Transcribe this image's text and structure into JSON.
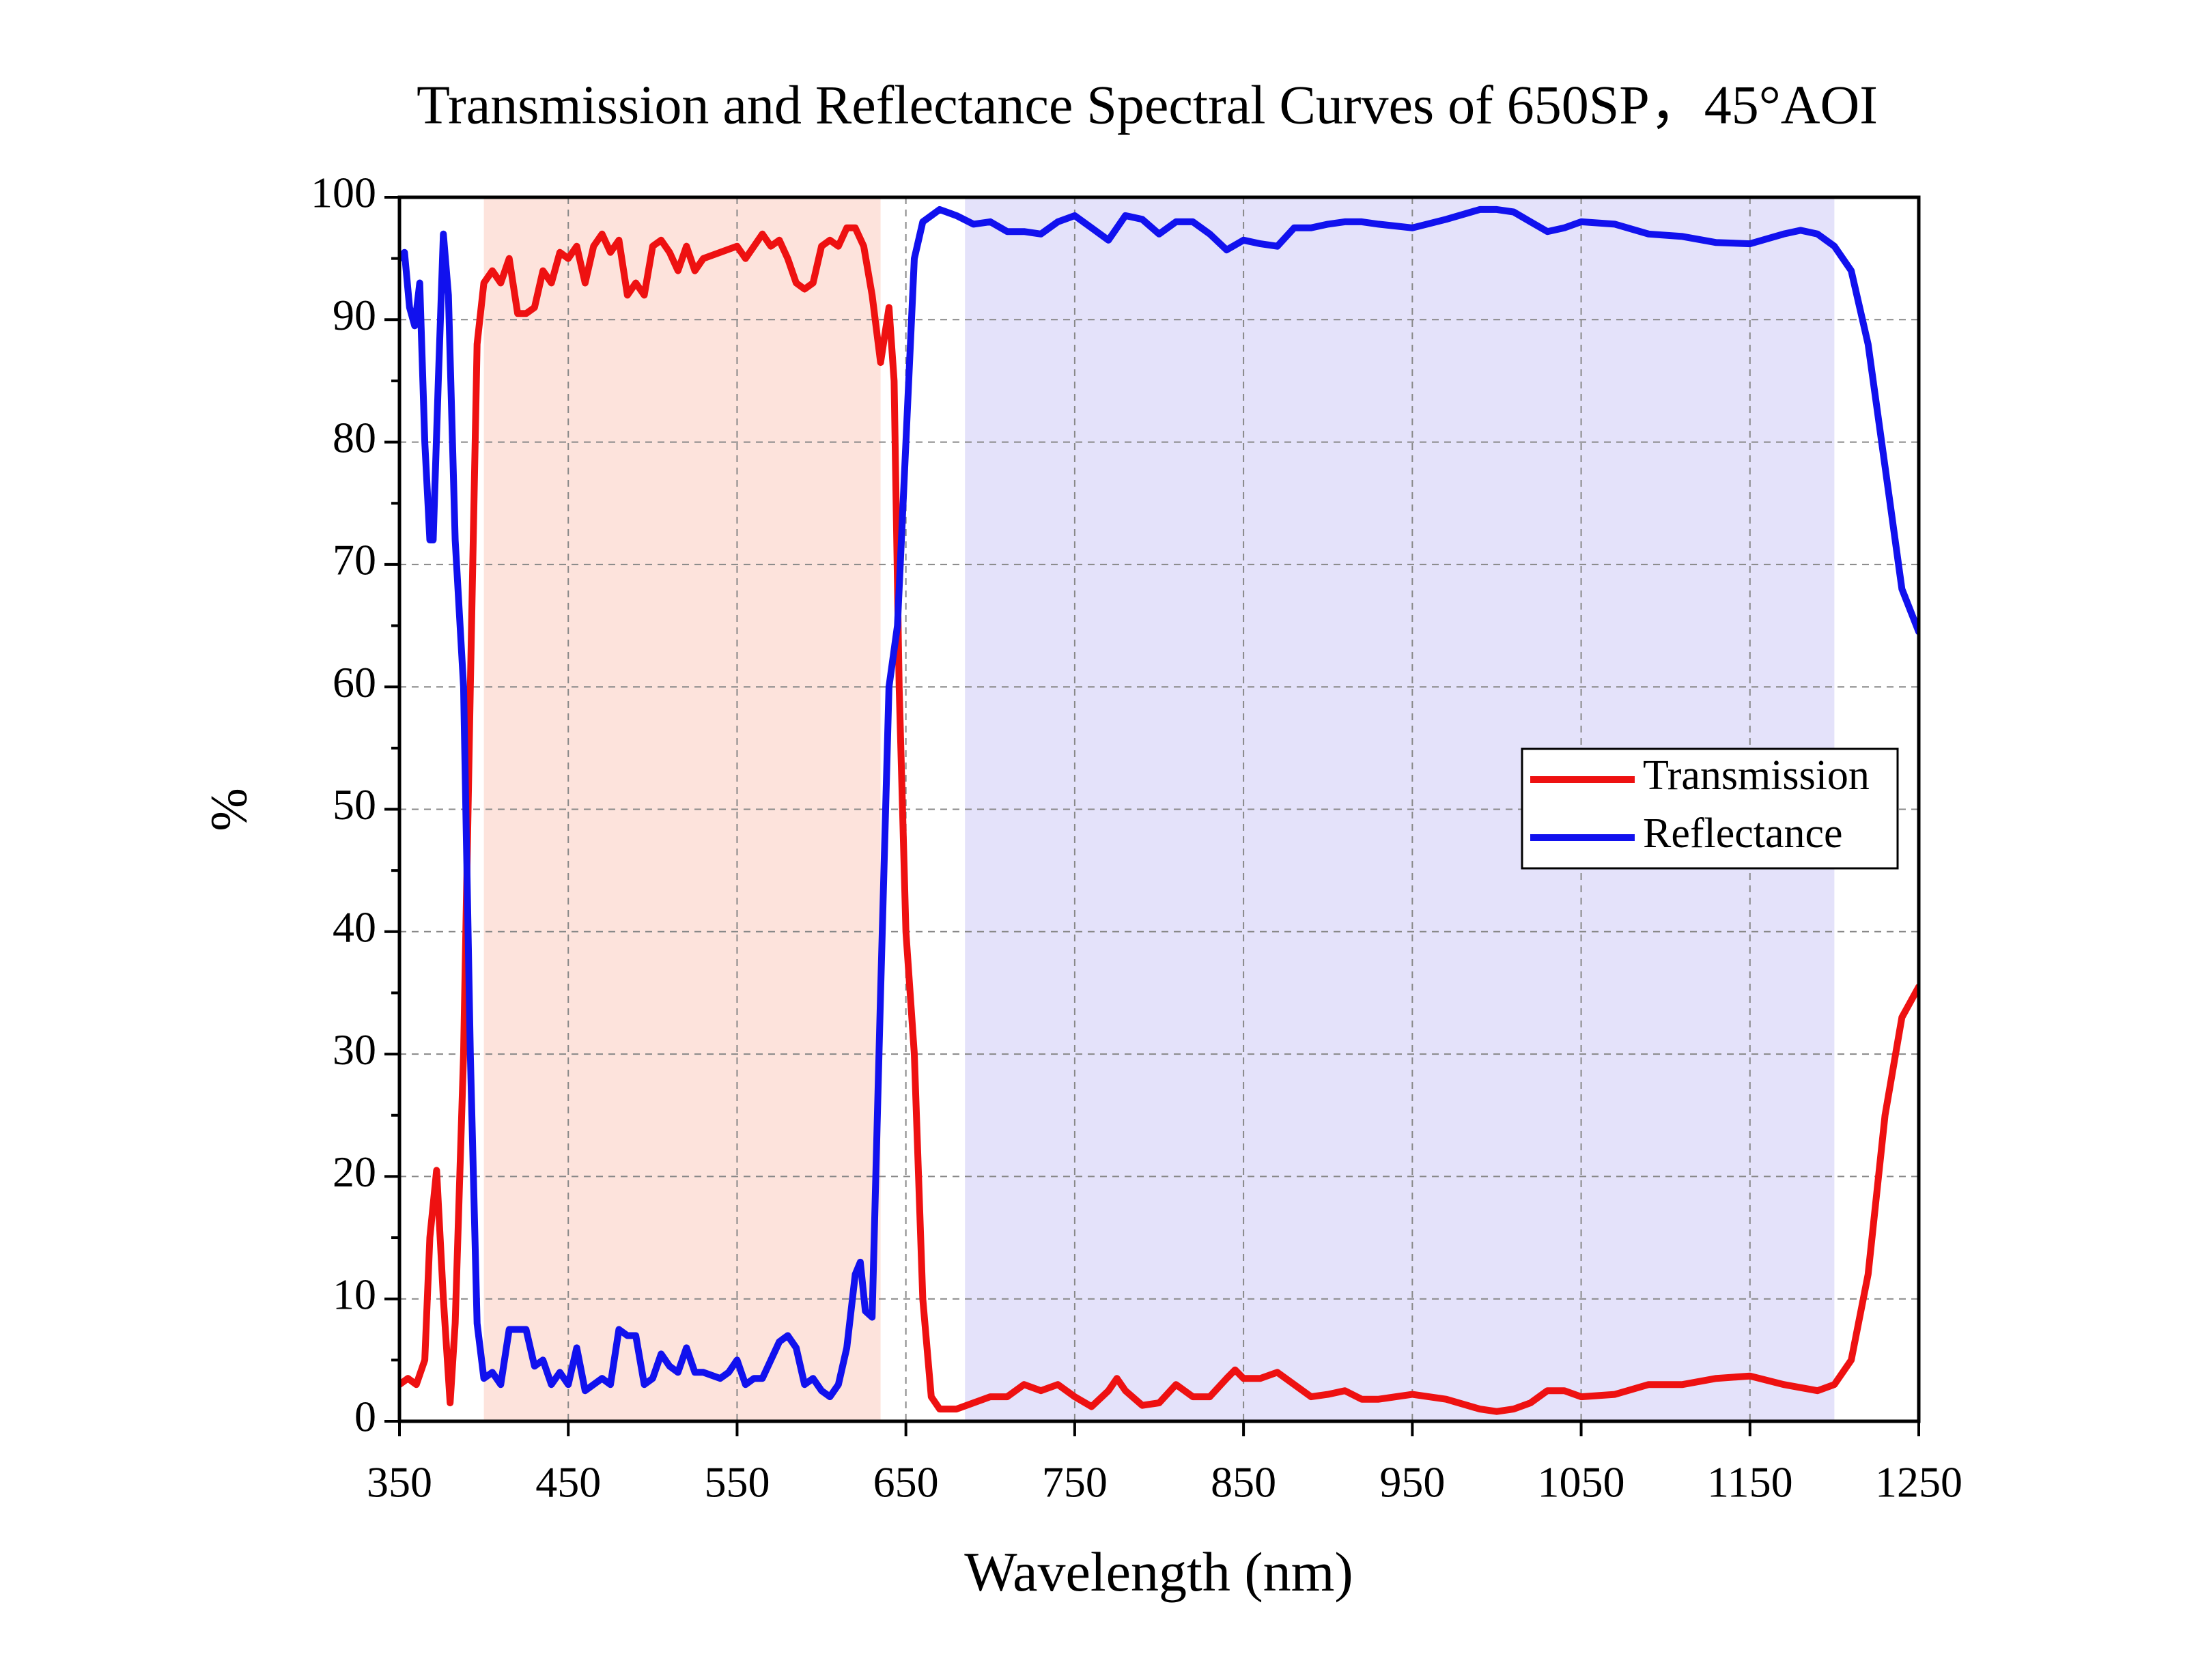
{
  "chart_data": {
    "type": "line",
    "title": "Transmission and Reflectance Spectral Curves of 650SP，45°AOI",
    "x_label": "Wavelength (nm)",
    "y_label": "%",
    "xlim": [
      350,
      1250
    ],
    "ylim": [
      0,
      100
    ],
    "xticks": [
      350,
      450,
      550,
      650,
      750,
      850,
      950,
      1050,
      1150,
      1250
    ],
    "yticks": [
      0,
      10,
      20,
      30,
      40,
      50,
      60,
      70,
      80,
      90,
      100
    ],
    "yminor_ticks": [
      5,
      15,
      25,
      35,
      45,
      55,
      65,
      75,
      85,
      95
    ],
    "grid": true,
    "legend": "right",
    "bands": [
      {
        "x": [
          400,
          635
        ],
        "color": "#fde3dc"
      },
      {
        "x": [
          685,
          1200
        ],
        "color": "#e4e2fa"
      }
    ],
    "series": [
      {
        "name": "Transmission",
        "color": "#ee1111",
        "x": [
          350,
          355,
          360,
          365,
          368,
          372,
          376,
          380,
          383,
          388,
          392,
          396,
          400,
          405,
          410,
          415,
          420,
          425,
          430,
          435,
          440,
          445,
          450,
          455,
          460,
          465,
          470,
          475,
          480,
          485,
          490,
          495,
          500,
          505,
          510,
          515,
          520,
          525,
          530,
          540,
          550,
          555,
          560,
          565,
          570,
          575,
          580,
          585,
          590,
          595,
          600,
          605,
          610,
          615,
          620,
          625,
          630,
          635,
          640,
          643,
          646,
          650,
          655,
          660,
          665,
          670,
          680,
          690,
          700,
          710,
          720,
          730,
          740,
          750,
          760,
          770,
          775,
          780,
          790,
          800,
          810,
          820,
          830,
          840,
          845,
          850,
          860,
          870,
          880,
          890,
          900,
          910,
          920,
          930,
          950,
          970,
          990,
          1000,
          1010,
          1020,
          1030,
          1040,
          1050,
          1070,
          1090,
          1110,
          1130,
          1150,
          1170,
          1190,
          1200,
          1210,
          1220,
          1230,
          1240,
          1250
        ],
        "values": [
          3,
          3.5,
          3,
          5,
          15,
          20.5,
          10,
          1.5,
          8,
          30,
          60,
          88,
          93,
          94,
          93,
          95,
          90.5,
          90.5,
          91,
          94,
          93,
          95.5,
          95,
          96,
          93,
          96,
          97,
          95.5,
          96.5,
          92,
          93,
          92,
          96,
          96.5,
          95.5,
          94,
          96,
          94,
          95,
          95.5,
          96,
          95,
          96,
          97,
          96,
          96.5,
          95,
          93,
          92.5,
          93,
          96,
          96.5,
          96,
          97.5,
          97.5,
          96,
          92,
          86.5,
          91,
          85,
          60,
          40,
          30,
          10,
          2,
          1,
          1,
          1.5,
          2,
          2,
          3,
          2.5,
          3,
          2,
          1.2,
          2.5,
          3.5,
          2.5,
          1.3,
          1.5,
          3,
          2,
          2,
          3.5,
          4.2,
          3.5,
          3.5,
          4,
          3,
          2,
          2.2,
          2.5,
          1.8,
          1.8,
          2.2,
          1.8,
          1,
          0.8,
          1,
          1.5,
          2.5,
          2.5,
          2,
          2.2,
          3,
          3,
          3.5,
          3.7,
          3,
          2.5,
          3,
          5,
          12,
          25,
          33,
          35.5
        ]
      },
      {
        "name": "Reflectance",
        "color": "#1111ee",
        "x": [
          350,
          353,
          356,
          359,
          362,
          365,
          368,
          370,
          373,
          376,
          379,
          383,
          388,
          392,
          396,
          400,
          405,
          410,
          415,
          420,
          425,
          430,
          435,
          440,
          445,
          450,
          455,
          460,
          465,
          470,
          475,
          480,
          485,
          490,
          495,
          500,
          505,
          510,
          515,
          520,
          525,
          530,
          540,
          545,
          550,
          555,
          560,
          565,
          570,
          575,
          580,
          585,
          590,
          595,
          600,
          605,
          610,
          615,
          620,
          623,
          626,
          630,
          635,
          640,
          645,
          650,
          655,
          660,
          670,
          680,
          690,
          700,
          710,
          720,
          730,
          740,
          750,
          760,
          770,
          780,
          790,
          800,
          810,
          820,
          830,
          840,
          850,
          860,
          870,
          880,
          890,
          900,
          910,
          920,
          930,
          950,
          970,
          990,
          1000,
          1010,
          1020,
          1030,
          1040,
          1050,
          1070,
          1090,
          1110,
          1130,
          1150,
          1170,
          1180,
          1190,
          1200,
          1210,
          1220,
          1230,
          1240,
          1250
        ],
        "values": [
          95,
          95.5,
          91,
          89.5,
          93,
          80,
          72,
          72,
          85,
          97,
          92,
          72,
          60,
          30,
          8,
          3.5,
          4,
          3,
          7.5,
          7.5,
          7.5,
          4.5,
          5,
          3,
          4,
          3,
          6,
          2.5,
          3,
          3.5,
          3,
          7.5,
          7,
          7,
          3,
          3.5,
          5.5,
          4.5,
          4,
          6,
          4,
          4,
          3.5,
          4,
          5,
          3,
          3.5,
          3.5,
          5,
          6.5,
          7,
          6,
          3,
          3.5,
          2.5,
          2,
          3,
          6,
          12,
          13,
          9,
          8.5,
          35,
          60,
          65,
          80,
          95,
          98,
          99,
          98.5,
          97.8,
          98,
          97.2,
          97.2,
          97,
          98,
          98.5,
          97.5,
          96.5,
          98.5,
          98.2,
          97,
          98,
          98,
          97,
          95.7,
          96.5,
          96.2,
          96,
          97.5,
          97.5,
          97.8,
          98,
          98,
          97.8,
          97.5,
          98.2,
          99,
          99,
          98.8,
          98,
          97.2,
          97.5,
          98,
          97.8,
          97,
          96.8,
          96.3,
          96.2,
          97,
          97.3,
          97,
          96,
          94,
          88,
          78,
          68,
          64.5
        ]
      }
    ]
  }
}
